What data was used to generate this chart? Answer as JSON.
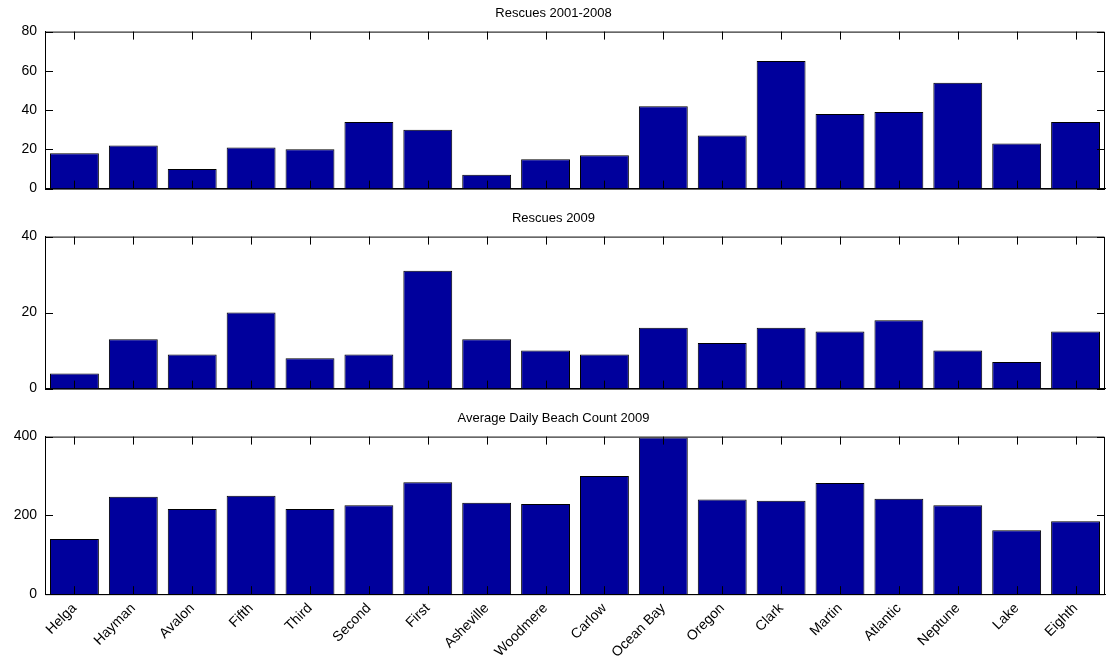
{
  "chart_data": [
    {
      "type": "bar",
      "title": "Rescues 2001-2008",
      "categories": [
        null,
        null,
        null,
        null,
        null,
        null,
        null,
        null,
        null,
        null,
        null,
        null,
        null,
        null,
        null,
        null,
        null,
        null
      ],
      "color": "#00009c",
      "values": [
        18,
        22,
        10,
        21,
        20,
        34,
        30,
        7,
        15,
        17,
        42,
        27,
        65,
        38,
        39,
        54,
        23,
        34
      ],
      "ylim": [
        0,
        80
      ],
      "yticks": [
        0,
        20,
        40,
        60,
        80
      ],
      "tick_labels": "y"
    },
    {
      "type": "bar",
      "title": "Rescues 2009",
      "categories": [
        null,
        null,
        null,
        null,
        null,
        null,
        null,
        null,
        null,
        null,
        null,
        null,
        null,
        null,
        null,
        null,
        null,
        null
      ],
      "color": "#00009c",
      "values": [
        4,
        13,
        9,
        20,
        8,
        9,
        31,
        13,
        10,
        9,
        16,
        12,
        16,
        15,
        18,
        10,
        7,
        15
      ],
      "ylim": [
        0,
        40
      ],
      "yticks": [
        0,
        20,
        40
      ],
      "tick_labels": "y"
    },
    {
      "type": "bar",
      "title": "Average Daily Beach Count 2009",
      "categories": [
        "Helga",
        "Hayman",
        "Avalon",
        "Fifth",
        "Third",
        "Second",
        "First",
        "Asheville",
        "Woodmere",
        "Carlow",
        "Ocean Bay",
        "Oregon",
        "Clark",
        "Martin",
        "Atlantic",
        "Neptune",
        "Lake",
        "Eighth"
      ],
      "color": "#00009c",
      "values": [
        140,
        247,
        216,
        250,
        216,
        226,
        284,
        232,
        229,
        300,
        398,
        240,
        237,
        282,
        242,
        226,
        162,
        185
      ],
      "ylim": [
        0,
        400
      ],
      "yticks": [
        0,
        200,
        400
      ]
    }
  ]
}
